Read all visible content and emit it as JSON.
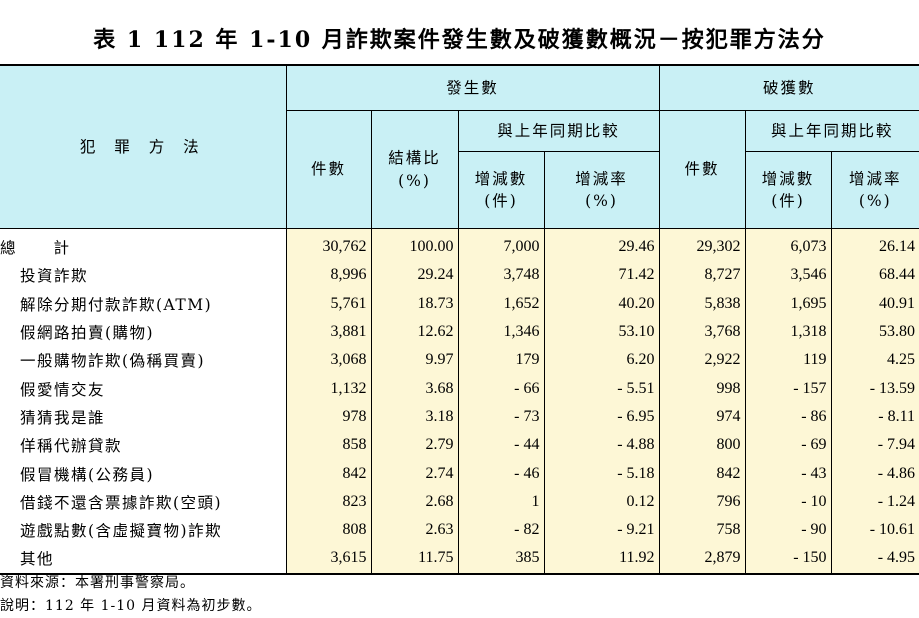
{
  "title": "表 1   112 年 1-10 月詐欺案件發生數及破獲數概況－按犯罪方法分",
  "header": {
    "method": "犯 罪 方 法",
    "occurrence": "發生數",
    "solved": "破獲數",
    "yoy": "與上年同期比較",
    "cases": "件數",
    "ratio_line1": "結構比",
    "ratio_line2": "(%)",
    "change_line1": "增減數",
    "change_line2": "(件)",
    "rate_line1": "增減率",
    "rate_line2": "(%)"
  },
  "total": {
    "label_a": "總",
    "label_b": "計",
    "values": [
      "30,762",
      "100.00",
      "7,000",
      "29.46",
      "29,302",
      "6,073",
      "26.14"
    ]
  },
  "rows": [
    {
      "label": "投資詐欺",
      "values": [
        "8,996",
        "29.24",
        "3,748",
        "71.42",
        "8,727",
        "3,546",
        "68.44"
      ]
    },
    {
      "label": "解除分期付款詐欺(ATM)",
      "values": [
        "5,761",
        "18.73",
        "1,652",
        "40.20",
        "5,838",
        "1,695",
        "40.91"
      ]
    },
    {
      "label": "假網路拍賣(購物)",
      "values": [
        "3,881",
        "12.62",
        "1,346",
        "53.10",
        "3,768",
        "1,318",
        "53.80"
      ]
    },
    {
      "label": "一般購物詐欺(偽稱買賣)",
      "values": [
        "3,068",
        "9.97",
        "179",
        "6.20",
        "2,922",
        "119",
        "4.25"
      ]
    },
    {
      "label": "假愛情交友",
      "values": [
        "1,132",
        "3.68",
        "- 66",
        "- 5.51",
        "998",
        "- 157",
        "- 13.59"
      ]
    },
    {
      "label": "猜猜我是誰",
      "values": [
        "978",
        "3.18",
        "- 73",
        "- 6.95",
        "974",
        "- 86",
        "- 8.11"
      ]
    },
    {
      "label": "佯稱代辦貸款",
      "values": [
        "858",
        "2.79",
        "- 44",
        "- 4.88",
        "800",
        "- 69",
        "- 7.94"
      ]
    },
    {
      "label": "假冒機構(公務員)",
      "values": [
        "842",
        "2.74",
        "- 46",
        "- 5.18",
        "842",
        "- 43",
        "- 4.86"
      ]
    },
    {
      "label": "借錢不還含票據詐欺(空頭)",
      "values": [
        "823",
        "2.68",
        "1",
        "0.12",
        "796",
        "- 10",
        "- 1.24"
      ]
    },
    {
      "label": "遊戲點數(含虛擬寶物)詐欺",
      "values": [
        "808",
        "2.63",
        "- 82",
        "- 9.21",
        "758",
        "- 90",
        "- 10.61"
      ]
    },
    {
      "label": "其他",
      "values": [
        "3,615",
        "11.75",
        "385",
        "11.92",
        "2,879",
        "- 150",
        "- 4.95"
      ]
    }
  ],
  "notes": {
    "source": "資料來源：本署刑事警察局。",
    "remark": "說明：112 年 1-10 月資料為初步數。"
  }
}
